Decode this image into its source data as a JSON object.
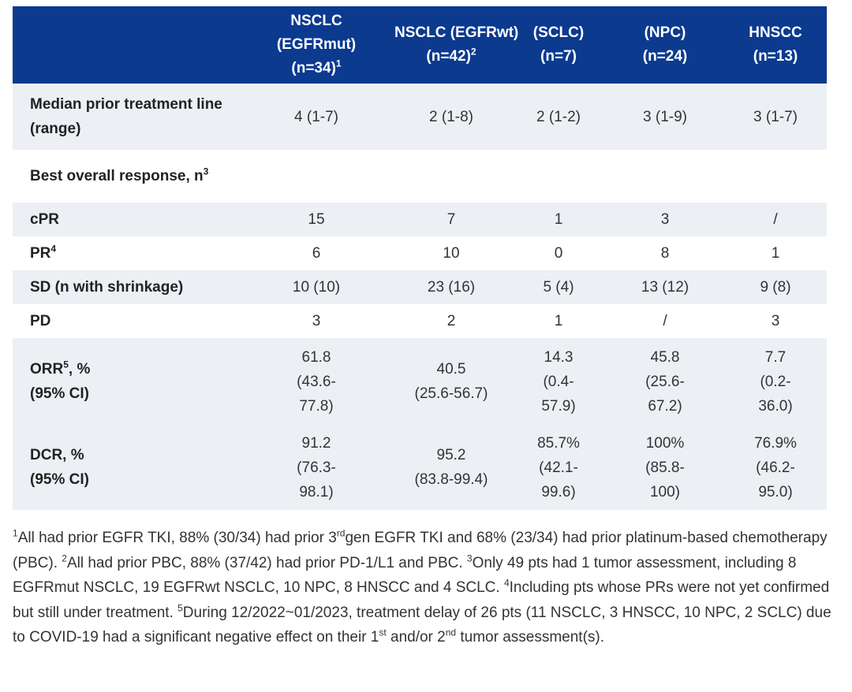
{
  "table": {
    "headers": [
      {
        "lines": [
          "NSCLC",
          "(EGFRmut)",
          "(n=34)"
        ],
        "sup": "1"
      },
      {
        "lines": [
          "NSCLC (EGFRwt)",
          "(n=42)"
        ],
        "sup": "2"
      },
      {
        "lines": [
          "(SCLC)",
          "(n=7)"
        ],
        "sup": ""
      },
      {
        "lines": [
          "(NPC)",
          "(n=24)"
        ],
        "sup": ""
      },
      {
        "lines": [
          "HNSCC",
          "(n=13)"
        ],
        "sup": ""
      }
    ],
    "rows": {
      "median": {
        "label": "Median prior treatment line (range)",
        "values": [
          "4 (1-7)",
          "2 (1-8)",
          "2 (1-2)",
          "3 (1-9)",
          "3 (1-7)"
        ]
      },
      "best": {
        "label": "Best overall response, n",
        "sup": "3"
      },
      "cpr": {
        "label": "cPR",
        "values": [
          "15",
          "7",
          "1",
          "3",
          "/"
        ]
      },
      "pr": {
        "label": "PR",
        "sup": "4",
        "values": [
          "6",
          "10",
          "0",
          "8",
          "1"
        ]
      },
      "sd": {
        "label": "SD (n with shrinkage)",
        "values": [
          "10 (10)",
          "23 (16)",
          "5 (4)",
          "13 (12)",
          "9 (8)"
        ]
      },
      "pd": {
        "label": "PD",
        "values": [
          "3",
          "2",
          "1",
          "/",
          "3"
        ]
      },
      "orr": {
        "label_a": "ORR",
        "sup": "5",
        "label_b": ", %",
        "label_c": "(95% CI)",
        "values": [
          [
            "61.8",
            "(43.6-",
            "77.8)"
          ],
          [
            "40.5",
            "(25.6-56.7)"
          ],
          [
            "14.3",
            "(0.4-",
            "57.9)"
          ],
          [
            "45.8",
            "(25.6-",
            "67.2)"
          ],
          [
            "7.7",
            "(0.2-",
            "36.0)"
          ]
        ]
      },
      "dcr": {
        "label_a": "DCR, %",
        "label_c": "(95% CI)",
        "values": [
          [
            "91.2",
            "(76.3-",
            "98.1)"
          ],
          [
            "95.2",
            "(83.8-99.4)"
          ],
          [
            "85.7%",
            "(42.1-",
            "99.6)"
          ],
          [
            "100%",
            "(85.8-",
            "100)"
          ],
          [
            "76.9%",
            "(46.2-",
            "95.0)"
          ]
        ]
      }
    }
  },
  "footnotes": {
    "s1": "1",
    "t1a": "All had prior EGFR TKI, 88% (30/34) had prior 3",
    "s_rd": "rd",
    "t1b": "gen EGFR TKI and 68% (23/34) had prior platinum-based chemotherapy (PBC). ",
    "s2": "2",
    "t2": "All had prior PBC, 88% (37/42) had prior PD-1/L1 and PBC. ",
    "s3": "3",
    "t3": "Only 49 pts had 1 tumor assessment, including 8 EGFRmut NSCLC, 19 EGFRwt NSCLC, 10 NPC, 8 HNSCC and 4 SCLC. ",
    "s4": "4",
    "t4": "Including pts whose PRs were not yet confirmed but still under treatment. ",
    "s5": "5",
    "t5a": "During 12/2022~01/2023, treatment delay of 26 pts (11 NSCLC, 3 HNSCC, 10 NPC, 2 SCLC) due to COVID-19 had a significant negative effect on their 1",
    "s_st": "st",
    "t5b": " and/or 2",
    "s_nd": "nd",
    "t5c": " tumor assessment(s)."
  }
}
